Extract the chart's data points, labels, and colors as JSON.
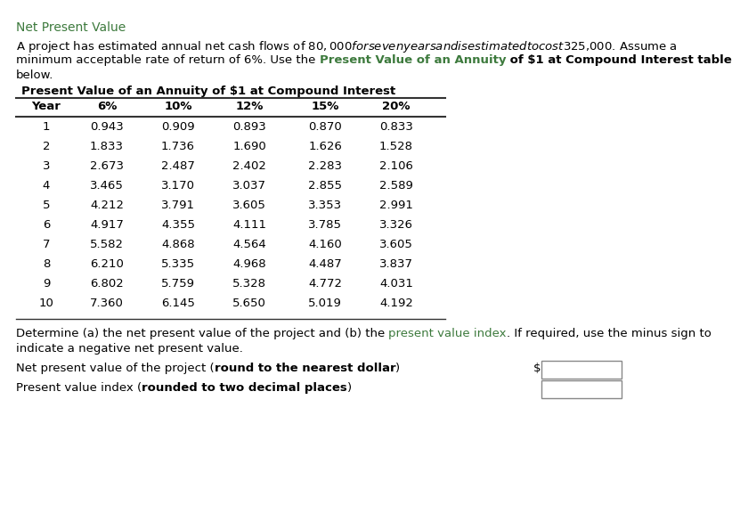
{
  "title": "Net Present Value",
  "title_color": "#3d7a3d",
  "para1_line1": "A project has estimated annual net cash flows of $80,000 for seven years and is estimated to cost $325,000. Assume a",
  "para1_line2_a": "minimum acceptable rate of return of 6%. Use the ",
  "para1_line2_b": "Present Value of an Annuity",
  "para1_line2_c": " of $1 at Compound Interest table",
  "para1_line3": "below.",
  "table_title": "Present Value of an Annuity of $1 at Compound Interest",
  "col_headers": [
    "Year",
    "6%",
    "10%",
    "12%",
    "15%",
    "20%"
  ],
  "table_data": [
    [
      "1",
      "0.943",
      "0.909",
      "0.893",
      "0.870",
      "0.833"
    ],
    [
      "2",
      "1.833",
      "1.736",
      "1.690",
      "1.626",
      "1.528"
    ],
    [
      "3",
      "2.673",
      "2.487",
      "2.402",
      "2.283",
      "2.106"
    ],
    [
      "4",
      "3.465",
      "3.170",
      "3.037",
      "2.855",
      "2.589"
    ],
    [
      "5",
      "4.212",
      "3.791",
      "3.605",
      "3.353",
      "2.991"
    ],
    [
      "6",
      "4.917",
      "4.355",
      "4.111",
      "3.785",
      "3.326"
    ],
    [
      "7",
      "5.582",
      "4.868",
      "4.564",
      "4.160",
      "3.605"
    ],
    [
      "8",
      "6.210",
      "5.335",
      "4.968",
      "4.487",
      "3.837"
    ],
    [
      "9",
      "6.802",
      "5.759",
      "5.328",
      "4.772",
      "4.031"
    ],
    [
      "10",
      "7.360",
      "6.145",
      "5.650",
      "5.019",
      "4.192"
    ]
  ],
  "para2_line1_a": "Determine (a) the net present value of the project and (b) the ",
  "para2_line1_b": "present value index",
  "para2_line1_c": ". If required, use the minus sign to",
  "para2_line2": "indicate a negative net present value.",
  "label1_a": "Net present value of the project (",
  "label1_b": "round to the nearest dollar",
  "label1_c": ")",
  "label2_a": "Present value index (",
  "label2_b": "rounded to two decimal places",
  "label2_c": ")",
  "dollar_sign": "$",
  "bg_color": "#ffffff",
  "text_color": "#000000",
  "green_color": "#3d7a3d",
  "line_color": "#333333",
  "body_fs": 9.5,
  "table_fs": 9.5,
  "title_fs": 10
}
